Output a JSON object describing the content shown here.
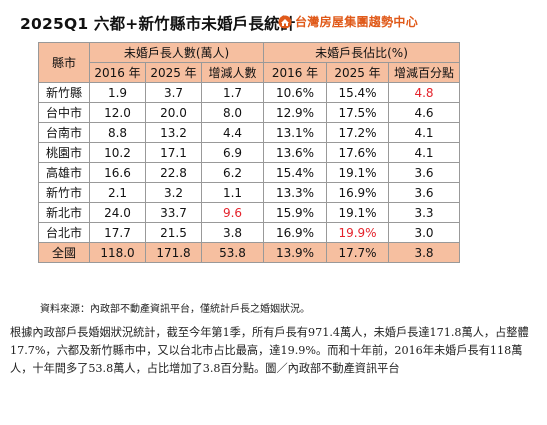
{
  "title": "2025Q1 六都+新竹縣市未婚戶長統計",
  "brand": {
    "name": "台灣房屋集團趨勢中心",
    "logo_icon": "house-flame-logo",
    "color": "#e05a1a"
  },
  "table": {
    "corner_header": "縣市",
    "group_headers": [
      "未婚戶長人數(萬人)",
      "未婚戶長佔比(%)"
    ],
    "sub_headers": [
      "2016 年",
      "2025 年",
      "增減人數",
      "2016 年",
      "2025 年",
      "增減百分點"
    ],
    "rows": [
      {
        "city": "新竹縣",
        "n2016": "1.9",
        "n2025": "3.7",
        "n_change": "1.7",
        "p2016": "10.6%",
        "p2025": "15.4%",
        "p_change": "4.8"
      },
      {
        "city": "台中市",
        "n2016": "12.0",
        "n2025": "20.0",
        "n_change": "8.0",
        "p2016": "12.9%",
        "p2025": "17.5%",
        "p_change": "4.6"
      },
      {
        "city": "台南市",
        "n2016": "8.8",
        "n2025": "13.2",
        "n_change": "4.4",
        "p2016": "13.1%",
        "p2025": "17.2%",
        "p_change": "4.1"
      },
      {
        "city": "桃園市",
        "n2016": "10.2",
        "n2025": "17.1",
        "n_change": "6.9",
        "p2016": "13.6%",
        "p2025": "17.6%",
        "p_change": "4.1"
      },
      {
        "city": "高雄市",
        "n2016": "16.6",
        "n2025": "22.8",
        "n_change": "6.2",
        "p2016": "15.4%",
        "p2025": "19.1%",
        "p_change": "3.6"
      },
      {
        "city": "新竹市",
        "n2016": "2.1",
        "n2025": "3.2",
        "n_change": "1.1",
        "p2016": "13.3%",
        "p2025": "16.9%",
        "p_change": "3.6"
      },
      {
        "city": "新北市",
        "n2016": "24.0",
        "n2025": "33.7",
        "n_change": "9.6",
        "p2016": "15.9%",
        "p2025": "19.1%",
        "p_change": "3.3"
      },
      {
        "city": "台北市",
        "n2016": "17.7",
        "n2025": "21.5",
        "n_change": "3.8",
        "p2016": "16.9%",
        "p2025": "19.9%",
        "p_change": "3.0"
      }
    ],
    "total": {
      "city": "全國",
      "n2016": "118.0",
      "n2025": "171.8",
      "n_change": "53.8",
      "p2016": "13.9%",
      "p2025": "17.7%",
      "p_change": "3.8"
    },
    "colors": {
      "header_bg": "#f6bfa0",
      "highlight_red": "#e4222b"
    }
  },
  "source_note": "資料來源：內政部不動產資訊平台，僅統計戶長之婚姻狀況。",
  "article": "根據內政部戶長婚姻狀況統計，截至今年第1季，所有戶長有971.4萬人，未婚戶長達171.8萬人，占整體17.7%，六都及新竹縣市中，又以台北市占比最高，達19.9%。而和十年前，2016年未婚戶長有118萬人，十年間多了53.8萬人，占比增加了3.8百分點。圖／內政部不動產資訊平台"
}
